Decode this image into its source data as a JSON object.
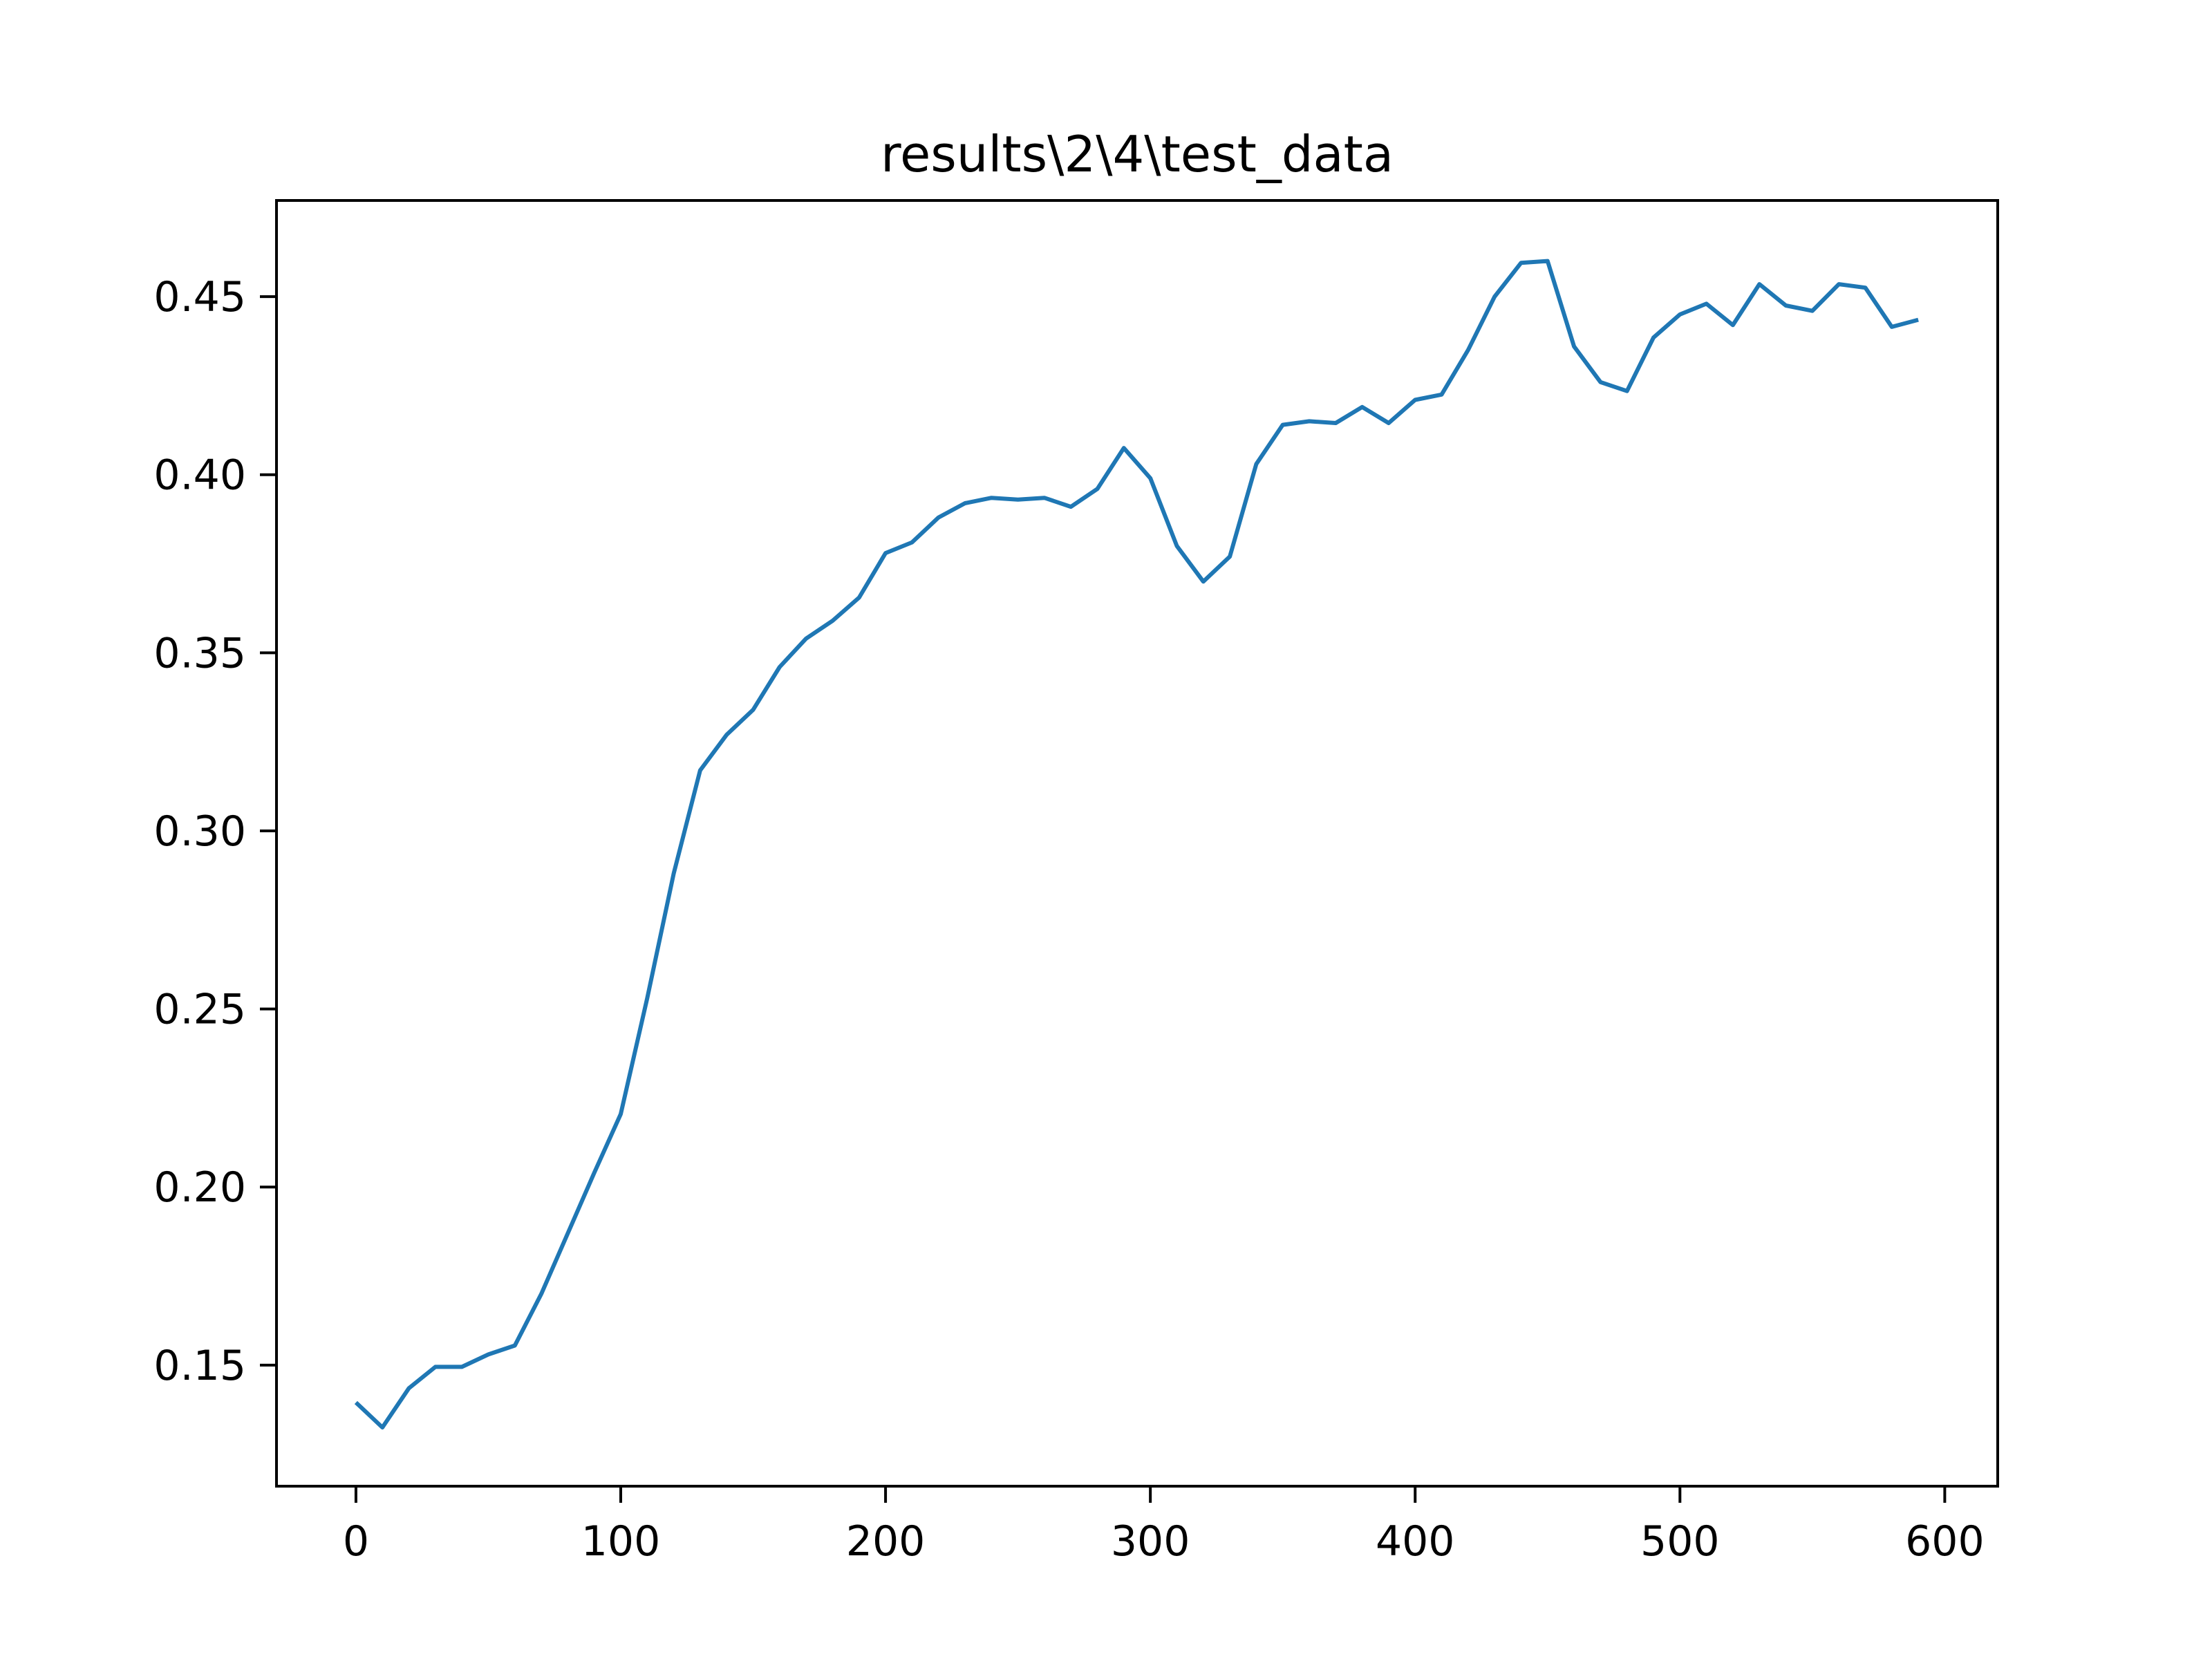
{
  "chart_data": {
    "type": "line",
    "title": "results\\2\\4\\test_data",
    "xlabel": "",
    "ylabel": "",
    "xlim": [
      -30,
      620
    ],
    "ylim": [
      0.116,
      0.477
    ],
    "xticks": [
      0,
      100,
      200,
      300,
      400,
      500,
      600
    ],
    "xtick_labels": [
      "0",
      "100",
      "200",
      "300",
      "400",
      "500",
      "600"
    ],
    "yticks": [
      0.15,
      0.2,
      0.25,
      0.3,
      0.35,
      0.4,
      0.45
    ],
    "ytick_labels": [
      "0.15",
      "0.20",
      "0.25",
      "0.30",
      "0.35",
      "0.40",
      "0.45"
    ],
    "grid": false,
    "legend": "none",
    "series": [
      {
        "color": "#1f77b4",
        "x": [
          0,
          10,
          20,
          30,
          40,
          50,
          60,
          70,
          80,
          90,
          100,
          110,
          120,
          130,
          140,
          150,
          160,
          170,
          180,
          190,
          200,
          210,
          220,
          230,
          240,
          250,
          260,
          270,
          280,
          290,
          300,
          310,
          320,
          330,
          340,
          350,
          360,
          370,
          380,
          390,
          400,
          410,
          420,
          430,
          440,
          450,
          460,
          470,
          480,
          490,
          500,
          510,
          520,
          530,
          540,
          550,
          560,
          570,
          580,
          590
        ],
        "y": [
          0.1395,
          0.1325,
          0.1435,
          0.1495,
          0.1495,
          0.153,
          0.1555,
          0.17,
          0.187,
          0.204,
          0.2205,
          0.253,
          0.288,
          0.317,
          0.327,
          0.334,
          0.346,
          0.354,
          0.359,
          0.3655,
          0.378,
          0.381,
          0.388,
          0.392,
          0.3935,
          0.393,
          0.3935,
          0.391,
          0.396,
          0.4075,
          0.399,
          0.38,
          0.37,
          0.377,
          0.403,
          0.414,
          0.415,
          0.4145,
          0.419,
          0.4145,
          0.421,
          0.4225,
          0.435,
          0.45,
          0.4595,
          0.46,
          0.436,
          0.426,
          0.4235,
          0.4385,
          0.445,
          0.448,
          0.442,
          0.4535,
          0.4475,
          0.446,
          0.4535,
          0.4525,
          0.4415,
          0.4435
        ]
      }
    ]
  }
}
